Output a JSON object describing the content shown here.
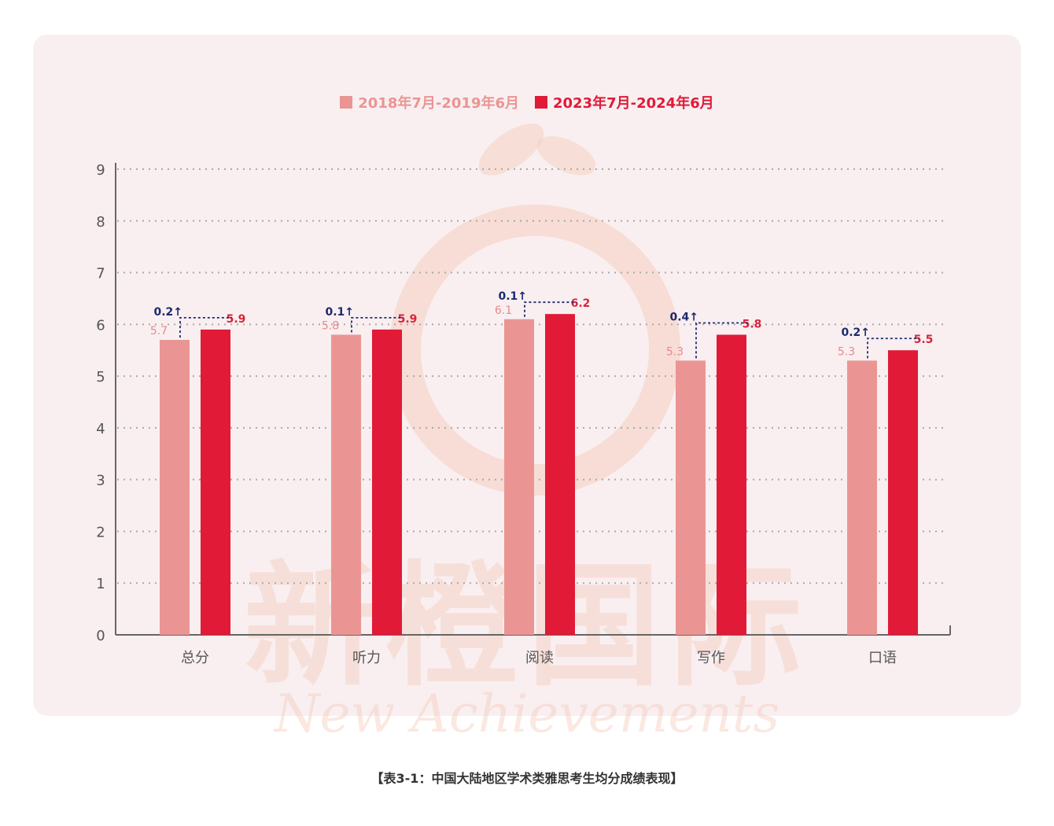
{
  "colors": {
    "series_old": "#ea9593",
    "series_new": "#e11a37",
    "label_old": "#e98a8a",
    "label_new": "#d9243b",
    "delta": "#1e2a6e",
    "axis": "#666666",
    "grid": "#a9a9a9",
    "tick_text": "#555555",
    "watermark": "#f6cdbd"
  },
  "watermark": {
    "cn": "新橙国际",
    "en": "New Achievements"
  },
  "caption": "【表3-1：中国大陆地区学术类雅思考生均分成绩表现】",
  "chart_data": {
    "type": "bar",
    "title": "",
    "xlabel": "",
    "ylabel": "",
    "categories": [
      "总分",
      "听力",
      "阅读",
      "写作",
      "口语"
    ],
    "ylim": [
      0,
      9
    ],
    "yticks": [
      0,
      1,
      2,
      3,
      4,
      5,
      6,
      7,
      8,
      9
    ],
    "grid": true,
    "legend_position": "top-center",
    "series": [
      {
        "name": "2018年7月-2019年6月",
        "values": [
          5.7,
          5.8,
          6.1,
          5.3,
          5.3
        ],
        "labels": [
          "5.7",
          "5.8",
          "6.1",
          "5.3",
          "5.3"
        ]
      },
      {
        "name": "2023年7月-2024年6月",
        "values": [
          5.9,
          5.9,
          6.2,
          5.8,
          5.5
        ],
        "labels": [
          "5.9",
          "5.9",
          "6.2",
          "5.8",
          "5.5"
        ]
      }
    ],
    "annotations": [
      "0.2↑",
      "0.1↑",
      "0.1↑",
      "0.4↑",
      "0.2↑"
    ]
  }
}
